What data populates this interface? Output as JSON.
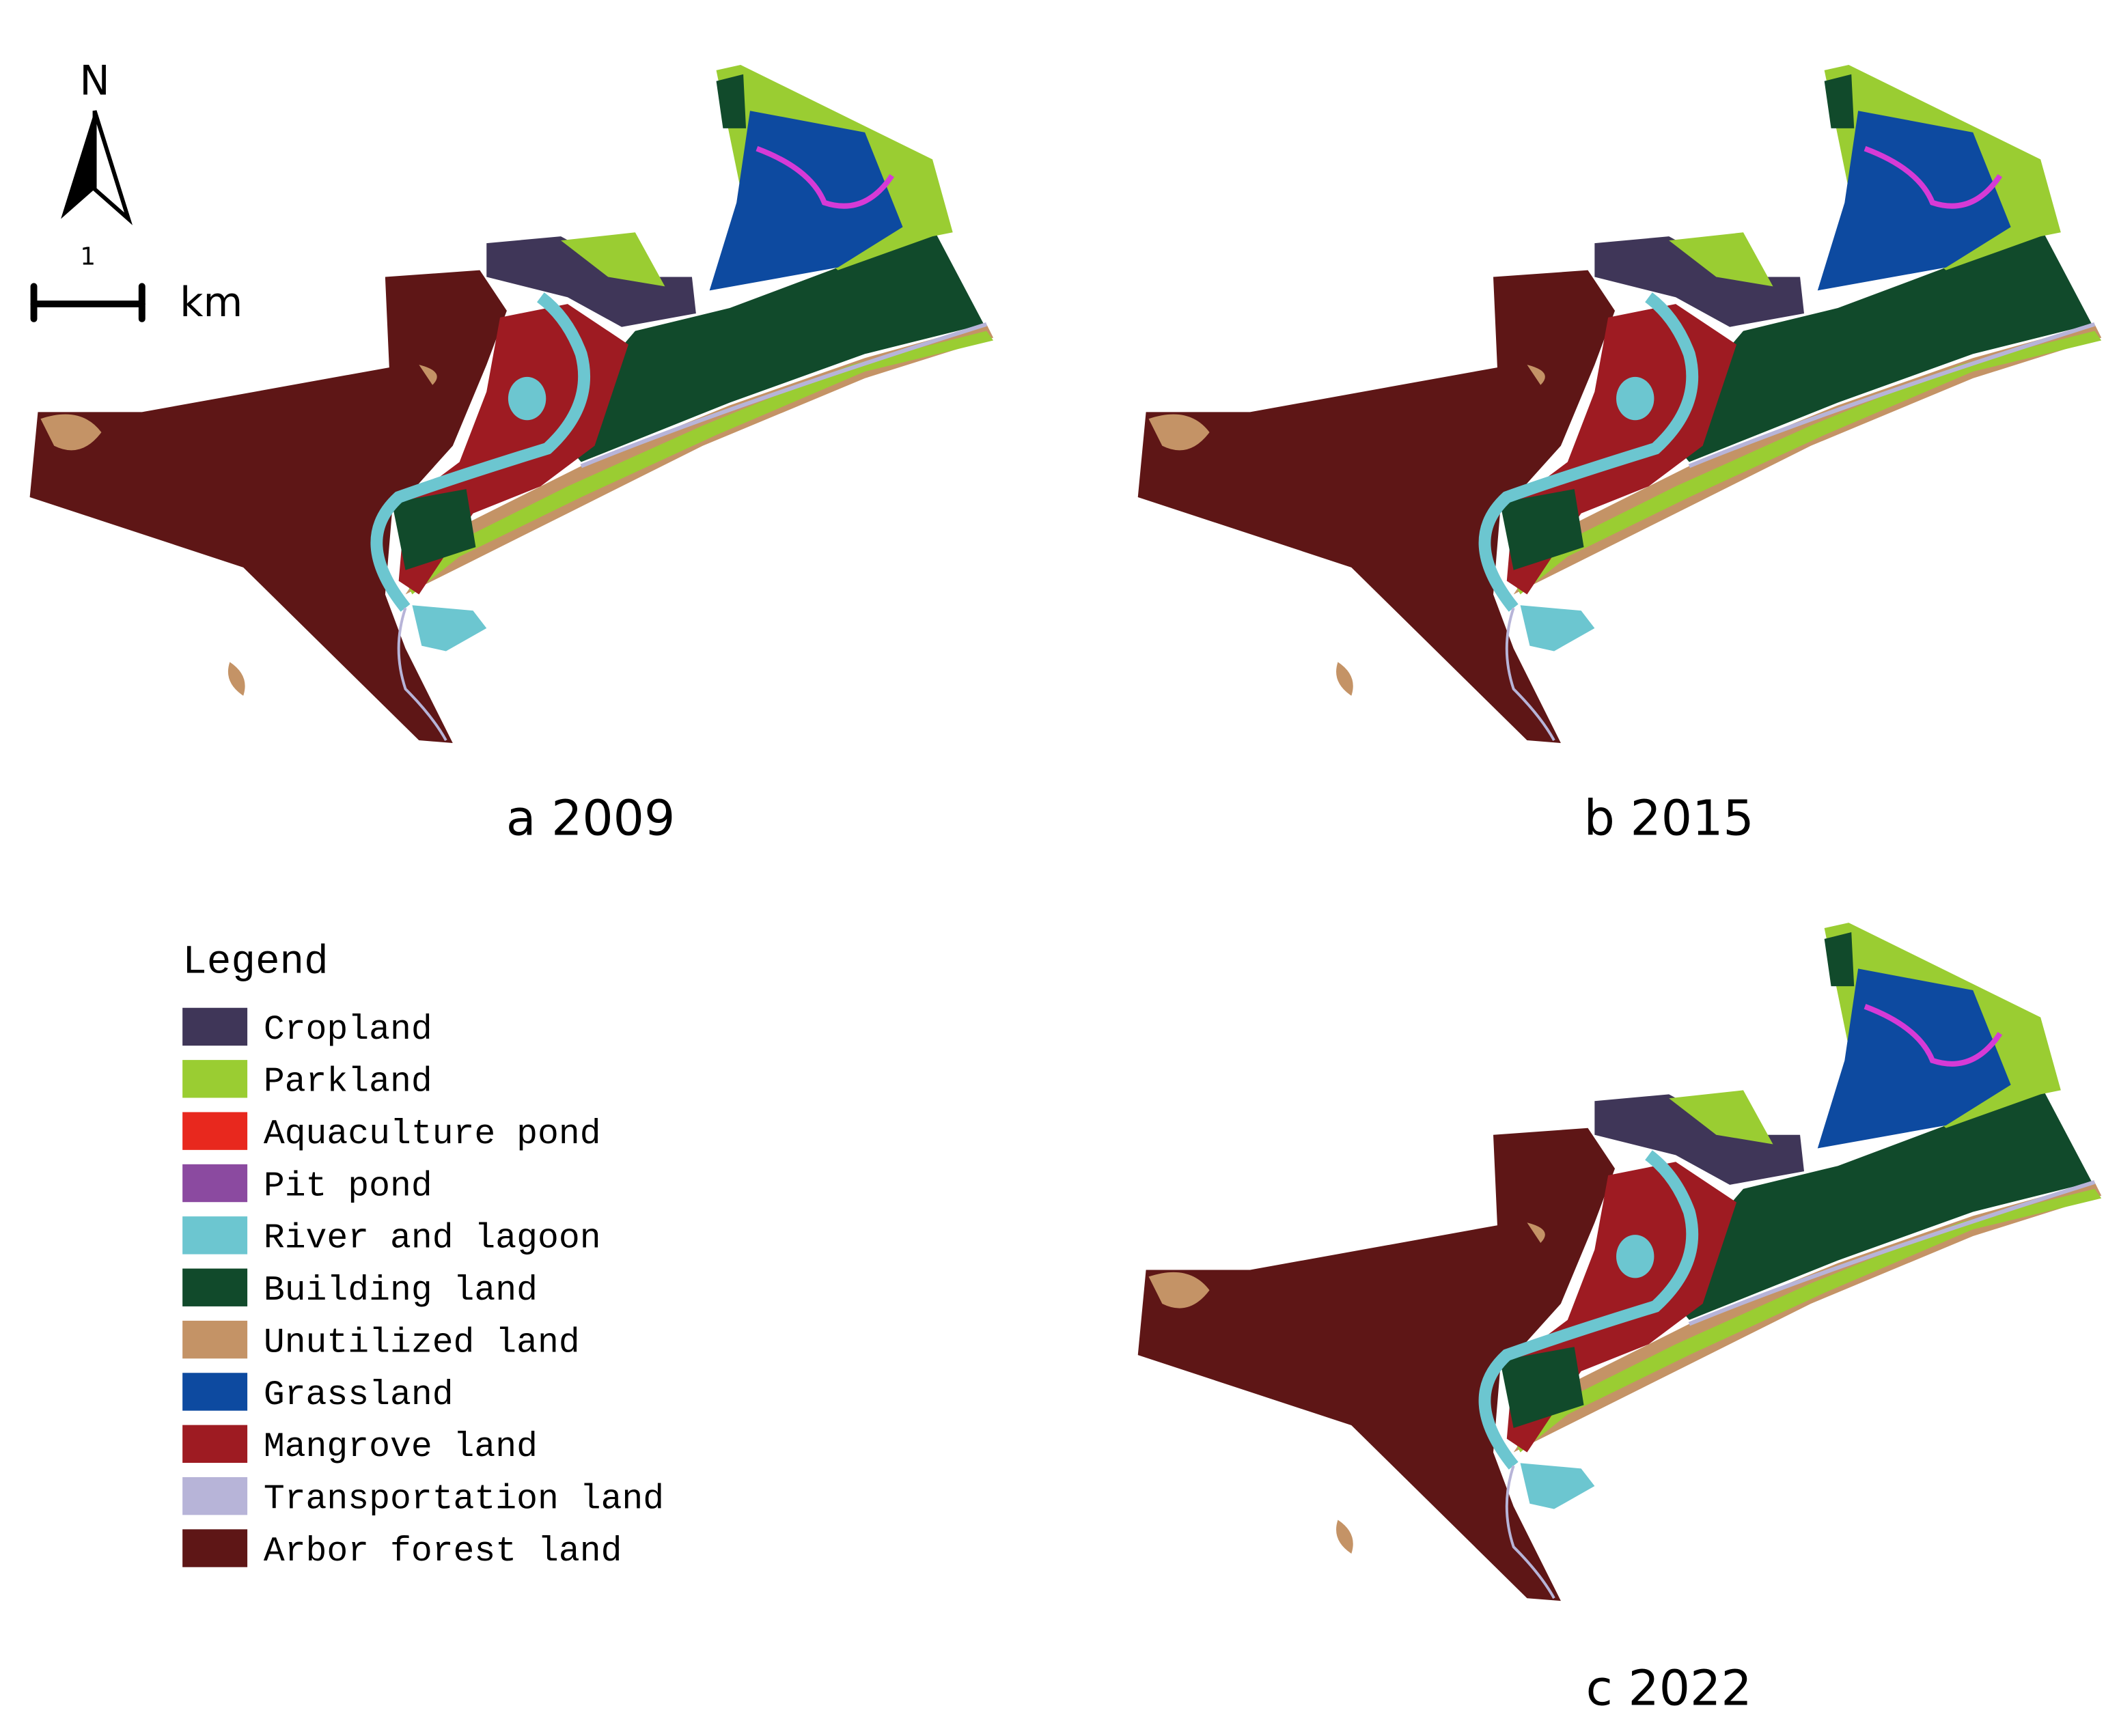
{
  "north_label": "N",
  "scale_bar": {
    "value_label": "1",
    "unit": "km"
  },
  "panels": [
    {
      "caption": "a 2009"
    },
    {
      "caption": "b 2015"
    },
    {
      "caption": "c 2022"
    }
  ],
  "legend": {
    "title": "Legend",
    "items": [
      {
        "label": "Cropland",
        "color": "#3f3658"
      },
      {
        "label": "Parkland",
        "color": "#9acd32"
      },
      {
        "label": "Aquaculture pond",
        "color": "#e8281e"
      },
      {
        "label": "Pit pond",
        "color": "#8b4aa0"
      },
      {
        "label": "River and lagoon",
        "color": "#6cc6d0"
      },
      {
        "label": "Building land",
        "color": "#114a2b"
      },
      {
        "label": "Unutilized land",
        "color": "#c49366"
      },
      {
        "label": "Grassland",
        "color": "#0d4aa0"
      },
      {
        "label": "Mangrove land",
        "color": "#9e1b22"
      },
      {
        "label": "Transportation land",
        "color": "#b7b4d8"
      },
      {
        "label": "Arbor forest land",
        "color": "#5e1616"
      }
    ]
  }
}
